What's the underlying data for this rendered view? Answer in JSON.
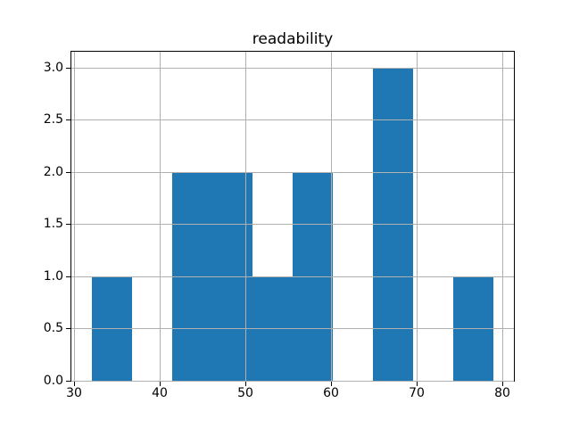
{
  "figure": {
    "background": "#ffffff"
  },
  "chart_data": {
    "type": "histogram",
    "title": "readability",
    "xlabel": "",
    "ylabel": "",
    "bin_edges": [
      32.0,
      36.7,
      41.4,
      46.1,
      50.8,
      55.5,
      60.2,
      64.9,
      69.6,
      74.3,
      79.0
    ],
    "counts": [
      1,
      0,
      2,
      2,
      1,
      2,
      0,
      3,
      0,
      1
    ],
    "xlim": [
      29.65,
      81.35
    ],
    "ylim": [
      0,
      3.15
    ],
    "xticks": [
      30,
      40,
      50,
      60,
      70,
      80
    ],
    "yticks": [
      0.0,
      0.5,
      1.0,
      1.5,
      2.0,
      2.5,
      3.0
    ],
    "xtick_labels": [
      "30",
      "40",
      "50",
      "60",
      "70",
      "80"
    ],
    "ytick_labels": [
      "0.0",
      "0.5",
      "1.0",
      "1.5",
      "2.0",
      "2.5",
      "3.0"
    ],
    "grid": true,
    "grid_over_bars": true,
    "legend_position": "none",
    "bar_color": "#1f77b4",
    "grid_color": "#b0b0b0",
    "spine_color": "#000000",
    "text_color": "#000000"
  }
}
